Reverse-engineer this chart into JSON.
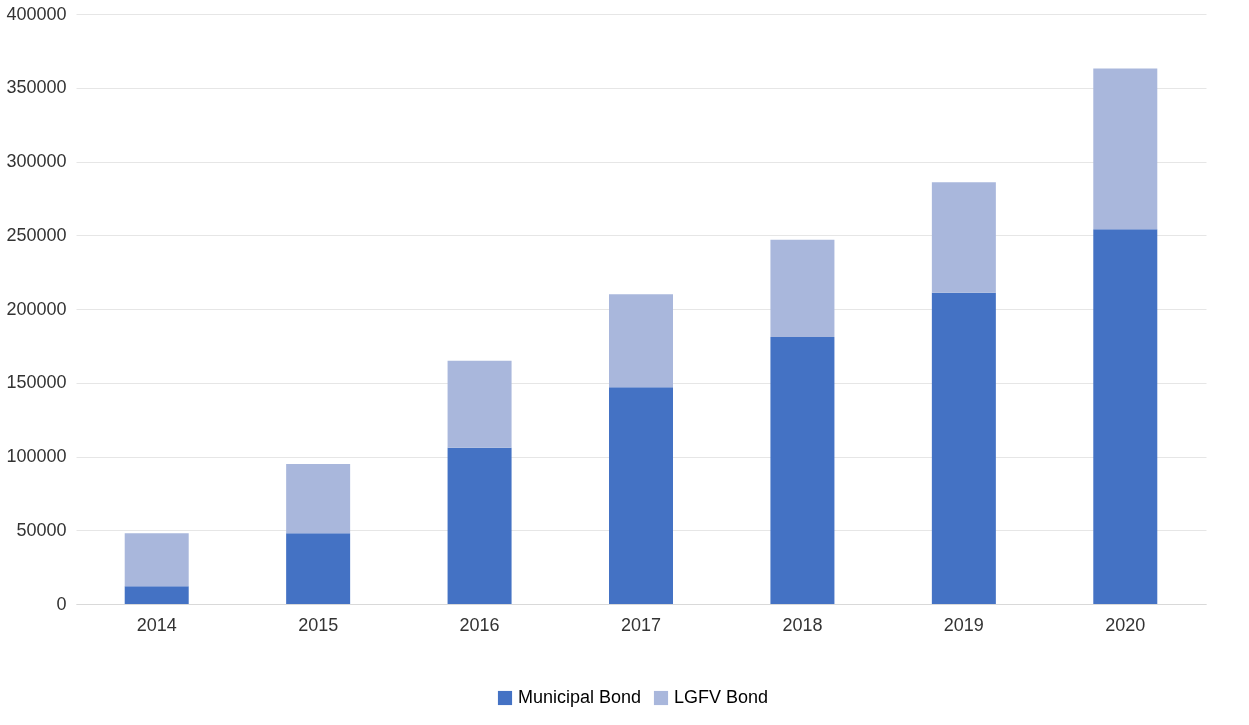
{
  "chart_data": {
    "type": "bar",
    "stacked": true,
    "categories": [
      "2014",
      "2015",
      "2016",
      "2017",
      "2018",
      "2019",
      "2020"
    ],
    "series": [
      {
        "name": "Municipal Bond",
        "color": "#4472c4",
        "values": [
          12000,
          48000,
          106000,
          147000,
          181000,
          211000,
          254000
        ]
      },
      {
        "name": "LGFV Bond",
        "color": "#a9b7dc",
        "values": [
          36000,
          47000,
          59000,
          63000,
          66000,
          75000,
          109000
        ]
      }
    ],
    "ylim": [
      0,
      400000
    ],
    "yticks": [
      0,
      50000,
      100000,
      150000,
      200000,
      250000,
      300000,
      350000,
      400000
    ],
    "grid": "y",
    "legend": "bottom"
  }
}
